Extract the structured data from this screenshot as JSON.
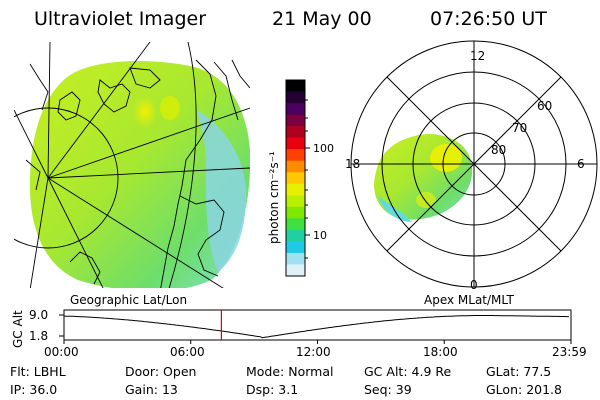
{
  "header": {
    "instrument": "Ultraviolet Imager",
    "date": "21 May 00",
    "time": "07:26:50 UT"
  },
  "colorbar": {
    "unit_label": "photon cm⁻²s⁻¹",
    "ticks": [
      "100",
      "10"
    ],
    "colors": [
      "#000000",
      "#220033",
      "#4b0060",
      "#7a0040",
      "#b00020",
      "#e80010",
      "#ff4000",
      "#ff8c00",
      "#ffc800",
      "#e8f000",
      "#b8f000",
      "#80e800",
      "#40e040",
      "#20d0a0",
      "#20c8e8",
      "#a0e0f0",
      "#e0f0f8"
    ]
  },
  "polar": {
    "labels": {
      "top": "12",
      "right": "6",
      "bottom": "0",
      "left": "18",
      "ring_60": "60",
      "ring_70": "70",
      "ring_80": "80"
    }
  },
  "coords": {
    "left_label": "Geographic Lat/Lon",
    "right_label": "Apex MLat/MLT"
  },
  "altitude_plot": {
    "ylabel": "GC Alt",
    "y_ticks": [
      "9.0",
      "1.8"
    ],
    "x_ticks": [
      "00:00",
      "06:00",
      "12:00",
      "18:00",
      "23:59"
    ],
    "cursor_hour": 7.45,
    "ymin": 1.8,
    "ymax": 9.0,
    "perigee_hour": 9.3
  },
  "info": {
    "row1": [
      {
        "label": "Flt:",
        "value": "LBHL"
      },
      {
        "label": "Door:",
        "value": "Open"
      },
      {
        "label": "Mode:",
        "value": "Normal"
      },
      {
        "label": "GC Alt:",
        "value": "4.9 Re"
      },
      {
        "label": "GLat:",
        "value": "77.5"
      }
    ],
    "row2": [
      {
        "label": "IP:",
        "value": "36.0"
      },
      {
        "label": "Gain:",
        "value": "13"
      },
      {
        "label": "Dsp:",
        "value": "3.1"
      },
      {
        "label": "Seq:",
        "value": "39"
      },
      {
        "label": "GLon:",
        "value": "201.8"
      }
    ]
  }
}
